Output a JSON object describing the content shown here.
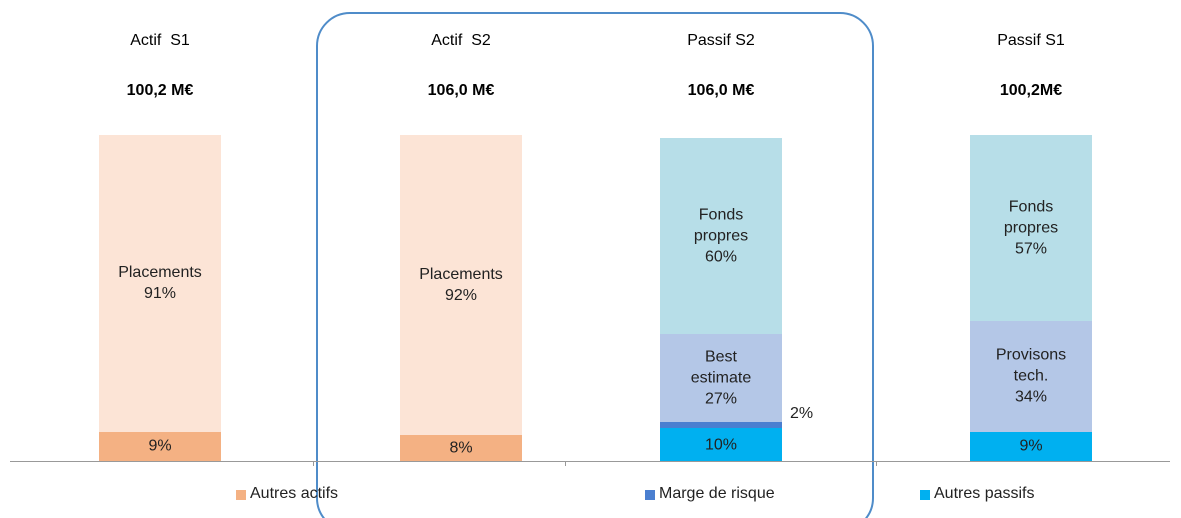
{
  "chart_data": {
    "type": "stacked-bar",
    "bars": [
      {
        "category": "Actif  S1",
        "total": "100,2 M€",
        "segments": [
          {
            "value": 9,
            "value_label": "9%",
            "color": "#f4b183"
          },
          {
            "name": "Placements",
            "value": 91,
            "value_label": "91%",
            "color": "#fce4d6"
          }
        ]
      },
      {
        "category": "Actif  S2",
        "total": "106,0 M€",
        "segments": [
          {
            "value": 8,
            "value_label": "8%",
            "color": "#f4b183"
          },
          {
            "name": "Placements",
            "value": 92,
            "value_label": "92%",
            "color": "#fce4d6"
          }
        ]
      },
      {
        "category": "Passif S2",
        "total": "106,0 M€",
        "segments": [
          {
            "value": 10,
            "value_label": "10%",
            "color": "#00b0f0"
          },
          {
            "value": 2,
            "value_label": "2%",
            "color": "#4a7fd0"
          },
          {
            "name": "Best estimate",
            "value": 27,
            "value_label": "27%",
            "color": "#b4c7e7"
          },
          {
            "name": "Fonds propres",
            "value": 60,
            "value_label": "60%",
            "color": "#b7dee8"
          }
        ]
      },
      {
        "category": "Passif S1",
        "total": "100,2M€",
        "segments": [
          {
            "value": 9,
            "value_label": "9%",
            "color": "#00b0f0"
          },
          {
            "name": "Provisons tech.",
            "value": 34,
            "value_label": "34%",
            "color": "#b4c7e7"
          },
          {
            "name": "Fonds propres",
            "value": 57,
            "value_label": "57%",
            "color": "#b7dee8"
          }
        ]
      }
    ],
    "legend": [
      {
        "name": "Autres actifs",
        "color": "#f4b183"
      },
      {
        "name": "Marge de risque",
        "color": "#4a7fd0"
      },
      {
        "name": "Autres passifs",
        "color": "#00b0f0"
      }
    ]
  }
}
